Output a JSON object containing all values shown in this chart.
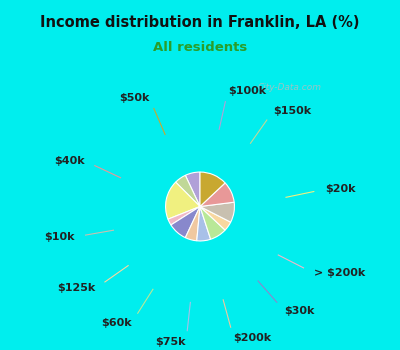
{
  "title": "Income distribution in Franklin, LA (%)",
  "subtitle": "All residents",
  "title_color": "#111111",
  "subtitle_color": "#2a9d2a",
  "top_bg_color": "#00eeee",
  "chart_bg_color": "#e0f0e8",
  "watermark": "City-Data.com",
  "slices": [
    {
      "label": "$100k",
      "value": 7.0,
      "color": "#b0a0d8"
    },
    {
      "label": "$150k",
      "value": 5.5,
      "color": "#c0d898"
    },
    {
      "label": "$20k",
      "value": 18.5,
      "color": "#f0f080"
    },
    {
      "label": "> $200k",
      "value": 3.0,
      "color": "#f0b8c8"
    },
    {
      "label": "$30k",
      "value": 9.0,
      "color": "#8888cc"
    },
    {
      "label": "$200k",
      "value": 5.5,
      "color": "#f0c8a0"
    },
    {
      "label": "$75k",
      "value": 6.5,
      "color": "#a8c0e8"
    },
    {
      "label": "$60k",
      "value": 8.0,
      "color": "#b8e898"
    },
    {
      "label": "$125k",
      "value": 4.5,
      "color": "#f8d8a0"
    },
    {
      "label": "$10k",
      "value": 9.5,
      "color": "#c8c0b0"
    },
    {
      "label": "$40k",
      "value": 10.0,
      "color": "#e89898"
    },
    {
      "label": "$50k",
      "value": 13.0,
      "color": "#c8a830"
    }
  ],
  "start_angle": 90,
  "label_fontsize": 8,
  "label_color": "#222222"
}
